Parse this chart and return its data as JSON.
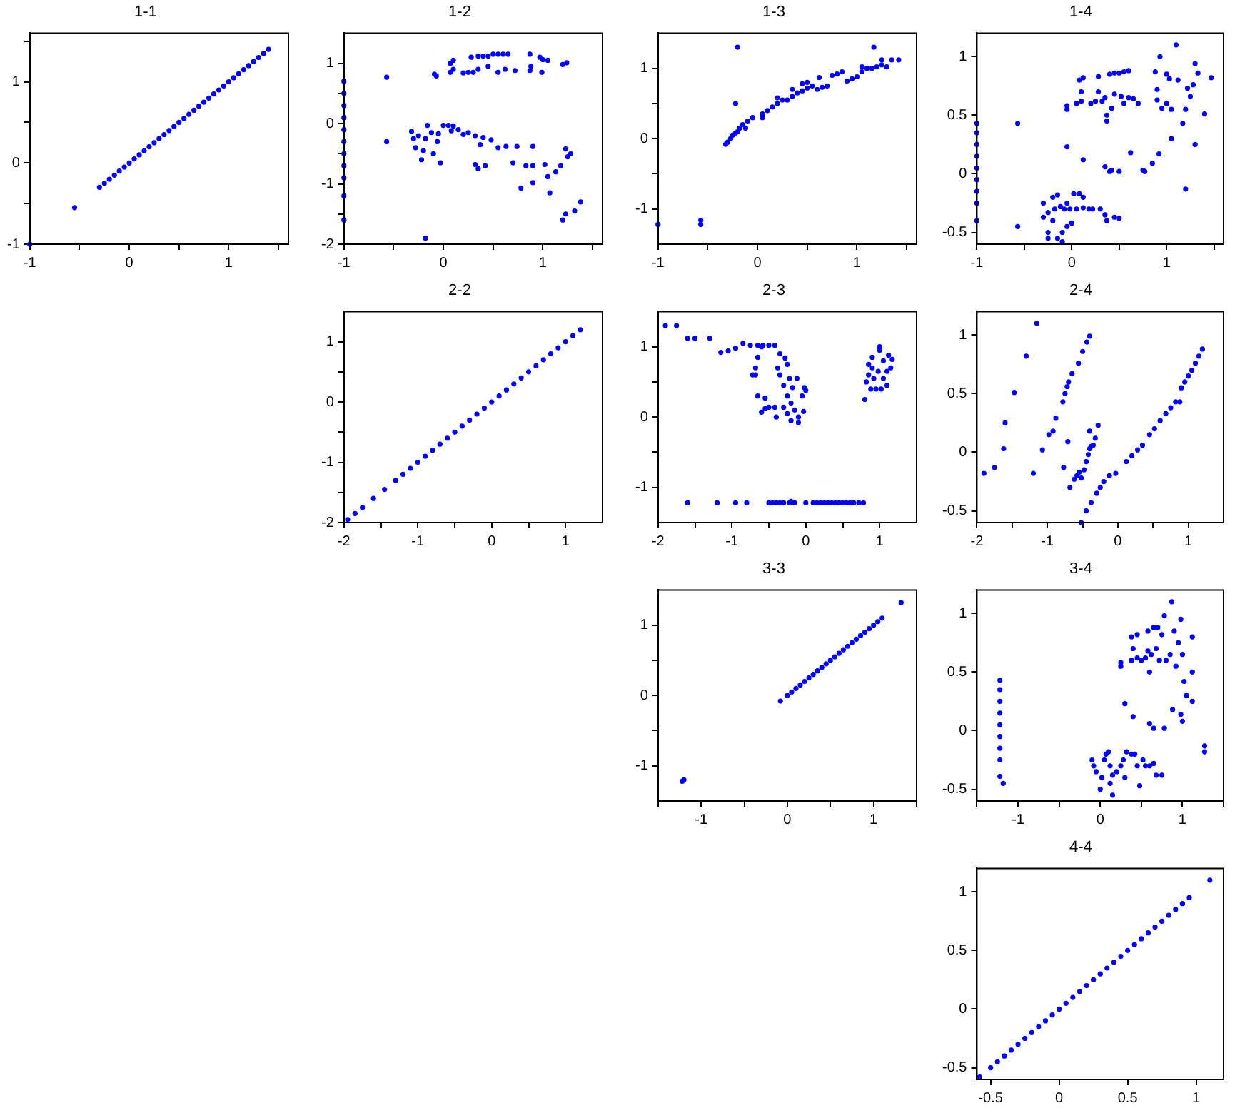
{
  "chart_data": [
    {
      "type": "scatter",
      "title": "1-1",
      "color": "#0000ff",
      "marker": "circle",
      "grid": false,
      "legend": false,
      "xlim": [
        -1,
        1.6
      ],
      "xticks": [
        -1,
        {
          "value": -0.5,
          "label": null
        },
        0,
        {
          "value": 0.5,
          "label": null
        },
        1,
        {
          "value": 1.5,
          "label": null
        }
      ],
      "ylim": [
        -1,
        1.6
      ],
      "yticks": [
        -1,
        {
          "value": -0.5,
          "label": null
        },
        0,
        {
          "value": 0.5,
          "label": null
        },
        1,
        {
          "value": 1.5,
          "label": null
        }
      ],
      "x": [
        -1,
        -0.55,
        -0.3,
        -0.25,
        -0.2,
        -0.15,
        -0.1,
        -0.05,
        0,
        0.05,
        0.1,
        0.15,
        0.2,
        0.25,
        0.3,
        0.35,
        0.4,
        0.45,
        0.5,
        0.55,
        0.6,
        0.65,
        0.7,
        0.75,
        0.8,
        0.85,
        0.9,
        0.95,
        1,
        1.05,
        1.1,
        1.15,
        1.2,
        1.25,
        1.3,
        1.35,
        1.4
      ],
      "values": [
        -1,
        -0.55,
        -0.3,
        -0.25,
        -0.2,
        -0.15,
        -0.1,
        -0.05,
        0,
        0.05,
        0.1,
        0.15,
        0.2,
        0.25,
        0.3,
        0.35,
        0.4,
        0.45,
        0.5,
        0.55,
        0.6,
        0.65,
        0.7,
        0.75,
        0.8,
        0.85,
        0.9,
        0.95,
        1,
        1.05,
        1.1,
        1.15,
        1.2,
        1.25,
        1.3,
        1.35,
        1.4
      ]
    },
    {
      "type": "scatter",
      "title": "1-2",
      "color": "#0000ff",
      "marker": "circle",
      "grid": false,
      "legend": false,
      "xlim": [
        -1,
        1.6
      ],
      "xticks": [
        -1,
        {
          "value": -0.5,
          "label": null
        },
        0,
        {
          "value": 0.5,
          "label": null
        },
        1,
        {
          "value": 1.5,
          "label": null
        }
      ],
      "ylim": [
        -2,
        1.5
      ],
      "yticks": [
        -2,
        {
          "value": -1.5,
          "label": null
        },
        -1,
        {
          "value": -0.5,
          "label": null
        },
        0,
        {
          "value": 0.5,
          "label": null
        },
        1
      ],
      "x": [
        -1,
        -1,
        -1,
        -1,
        -1,
        -1,
        -1,
        -1,
        -1,
        -1,
        -1,
        -0.57,
        -0.57,
        -0.09,
        -0.07,
        0.07,
        0.07,
        0.1,
        0.1,
        0.2,
        0.25,
        0.3,
        0.28,
        0.35,
        0.4,
        0.45,
        0.5,
        0.55,
        0.6,
        0.65,
        0.55,
        0.62,
        0.72,
        0.87,
        0.87,
        0.88,
        0.97,
        1,
        0.99,
        1.05,
        1.2,
        1.24,
        0.45,
        0.35,
        -0.32,
        -0.3,
        -0.25,
        -0.28,
        -0.22,
        -0.2,
        -0.18,
        -0.16,
        -0.12,
        -0.1,
        -0.06,
        -0.05,
        -0.03,
        0,
        0.05,
        0.08,
        0.1,
        0.15,
        0.2,
        0.25,
        0.32,
        0.32,
        0.35,
        0.37,
        0.4,
        0.42,
        0.48,
        0.55,
        0.63,
        0.7,
        0.74,
        0.78,
        0.83,
        0.9,
        0.9,
        0.9,
        1.02,
        1.07,
        1.05,
        1.13,
        1.18,
        1.23,
        1.25,
        1.28,
        1.2,
        1.23,
        1.32,
        1.38,
        -0.18
      ],
      "values": [
        0.7,
        0.5,
        0.3,
        0.1,
        -0.1,
        -0.3,
        -0.5,
        -0.7,
        -0.9,
        -1.2,
        -1.6,
        0.77,
        -0.3,
        0.82,
        0.79,
        1,
        0.85,
        1.05,
        0.9,
        0.84,
        0.85,
        0.85,
        1.1,
        0.9,
        1.12,
        1.12,
        1.15,
        1.15,
        1.15,
        1.15,
        0.85,
        0.9,
        0.88,
        1.15,
        0.88,
        0.95,
        1.1,
        1.06,
        0.85,
        1.05,
        0.98,
        1.01,
        0.95,
        1.12,
        -0.13,
        -0.25,
        -0.2,
        -0.4,
        -0.6,
        -0.45,
        -0.25,
        -0.03,
        -0.15,
        -0.5,
        -0.3,
        -0.17,
        -0.65,
        -0.03,
        -0.03,
        -0.12,
        -0.04,
        -0.1,
        -0.18,
        -0.15,
        -0.2,
        -0.68,
        -0.75,
        -0.35,
        -0.23,
        -0.7,
        -0.27,
        -0.4,
        -0.38,
        -0.65,
        -0.38,
        -1.07,
        -0.7,
        -0.38,
        -0.7,
        -0.98,
        -0.68,
        -1.15,
        -0.88,
        -0.8,
        -0.7,
        -0.42,
        -0.55,
        -0.5,
        -1.6,
        -1.5,
        -1.45,
        -1.3,
        -1.9
      ]
    },
    {
      "type": "scatter",
      "title": "1-3",
      "color": "#0000ff",
      "marker": "circle",
      "grid": false,
      "legend": false,
      "xlim": [
        -1,
        1.6
      ],
      "xticks": [
        -1,
        {
          "value": -0.5,
          "label": null
        },
        0,
        {
          "value": 0.5,
          "label": null
        },
        1,
        {
          "value": 1.5,
          "label": null
        }
      ],
      "ylim": [
        -1.5,
        1.5
      ],
      "yticks": [
        -1,
        {
          "value": -0.5,
          "label": null
        },
        0,
        {
          "value": 0.5,
          "label": null
        },
        1
      ],
      "x": [
        -1,
        -0.57,
        -0.57,
        -0.2,
        -0.22,
        1.17,
        -0.32,
        -0.3,
        -0.27,
        -0.25,
        -0.22,
        -0.2,
        -0.18,
        -0.15,
        -0.1,
        -0.05,
        -0.12,
        0.05,
        0.05,
        0.1,
        0.15,
        0.2,
        0.2,
        0.25,
        0.3,
        0.35,
        0.35,
        0.4,
        0.45,
        0.5,
        0.5,
        0.55,
        0.6,
        0.65,
        0.7,
        0.75,
        0.8,
        0.85,
        0.9,
        0.95,
        1,
        1.05,
        1.05,
        1.1,
        1.15,
        1.2,
        1.25,
        1.25,
        1.3,
        1.35,
        1.42,
        0.45,
        0.62
      ],
      "values": [
        -1.22,
        -1.16,
        -1.22,
        1.3,
        0.5,
        1.3,
        -0.08,
        -0.05,
        0,
        0.05,
        0.08,
        0.1,
        0.15,
        0.2,
        0.25,
        0.3,
        0.15,
        0.3,
        0.35,
        0.4,
        0.45,
        0.5,
        0.58,
        0.55,
        0.55,
        0.6,
        0.7,
        0.65,
        0.68,
        0.72,
        0.8,
        0.75,
        0.7,
        0.73,
        0.75,
        0.9,
        0.92,
        0.95,
        0.82,
        0.85,
        0.88,
        0.95,
        1.02,
        1,
        1,
        1.02,
        1.05,
        1.12,
        1.02,
        1.12,
        1.12,
        0.78,
        0.87
      ]
    },
    {
      "type": "scatter",
      "title": "1-4",
      "color": "#0000ff",
      "marker": "circle",
      "grid": false,
      "legend": false,
      "xlim": [
        -1,
        1.6
      ],
      "xticks": [
        -1,
        {
          "value": -0.5,
          "label": null
        },
        0,
        {
          "value": 0.5,
          "label": null
        },
        1,
        {
          "value": 1.5,
          "label": null
        }
      ],
      "ylim": [
        -0.6,
        1.2
      ],
      "yticks": [
        -0.5,
        0,
        0.5,
        1
      ],
      "x": [
        -1,
        -1,
        -1,
        -1,
        -1,
        -1,
        -1,
        -1,
        -1,
        -0.57,
        -0.57,
        -0.05,
        0.12,
        -0.05,
        -0.05,
        0.05,
        0.08,
        0.1,
        0.1,
        0.12,
        0.2,
        0.25,
        0.28,
        0.28,
        0.32,
        0.35,
        0.37,
        0.37,
        0.4,
        0.42,
        0.45,
        0.45,
        0.5,
        0.55,
        0.6,
        0.52,
        0.55,
        0.6,
        0.65,
        0.7,
        0.88,
        0.9,
        0.9,
        0.93,
        0.95,
        1,
        1,
        1.03,
        1.05,
        1.1,
        1.12,
        1.17,
        1.2,
        1.22,
        1.25,
        1.28,
        1.3,
        1.33,
        1.4,
        1.47,
        1.3,
        1.2,
        1.05,
        0.35,
        0.4,
        0.42,
        0.5,
        0.62,
        0.75,
        0.77,
        0.85,
        0.92,
        -0.3,
        -0.3,
        -0.25,
        -0.25,
        -0.25,
        -0.2,
        -0.2,
        -0.18,
        -0.15,
        -0.15,
        -0.12,
        -0.1,
        -0.08,
        -0.05,
        -0.05,
        -0.02,
        0,
        0.02,
        0.08,
        0.12,
        0.12,
        0.18,
        0.22,
        0.3,
        0.35,
        0.37,
        0.45,
        0.5,
        -0.1,
        0.05
      ],
      "values": [
        0.43,
        0.35,
        0.25,
        0.15,
        0.05,
        -0.05,
        -0.15,
        -0.25,
        -0.4,
        0.43,
        -0.45,
        0.23,
        0.12,
        0.58,
        0.55,
        0.6,
        0.8,
        0.7,
        0.62,
        0.82,
        0.6,
        0.62,
        0.83,
        0.7,
        0.62,
        0.65,
        0.5,
        0.45,
        0.85,
        0.56,
        0.86,
        0.68,
        0.86,
        0.87,
        0.88,
        0.66,
        0.6,
        0.65,
        0.64,
        0.6,
        0.87,
        0.72,
        0.63,
        1,
        0.56,
        0.85,
        0.6,
        0.81,
        0.55,
        1.1,
        0.8,
        0.43,
        0.55,
        0.73,
        0.66,
        0.76,
        0.94,
        0.86,
        0.51,
        0.82,
        0.25,
        -0.13,
        0.3,
        0.06,
        0.02,
        0.03,
        0.02,
        0.18,
        0.03,
        0.02,
        0.09,
        0.17,
        -0.25,
        -0.37,
        -0.33,
        -0.5,
        -0.55,
        -0.2,
        -0.4,
        -0.3,
        -0.18,
        -0.55,
        -0.28,
        -0.5,
        -0.3,
        -0.25,
        -0.45,
        -0.3,
        -0.42,
        -0.17,
        -0.17,
        -0.2,
        -0.29,
        -0.3,
        -0.3,
        -0.3,
        -0.35,
        -0.4,
        -0.37,
        -0.38,
        -0.58,
        -0.3
      ]
    },
    {
      "type": "scatter",
      "title": "2-2",
      "color": "#0000ff",
      "marker": "circle",
      "grid": false,
      "legend": false,
      "xlim": [
        -2,
        1.5
      ],
      "xticks": [
        -2,
        {
          "value": -1.5,
          "label": null
        },
        -1,
        {
          "value": -0.5,
          "label": null
        },
        0,
        {
          "value": 0.5,
          "label": null
        },
        1
      ],
      "ylim": [
        -2,
        1.5
      ],
      "yticks": [
        -2,
        {
          "value": -1.5,
          "label": null
        },
        -1,
        {
          "value": -0.5,
          "label": null
        },
        0,
        {
          "value": 0.5,
          "label": null
        },
        1
      ],
      "x": [
        -1.95,
        -1.85,
        -1.75,
        -1.6,
        -1.45,
        -1.3,
        -1.2,
        -1.1,
        -1,
        -0.9,
        -0.8,
        -0.7,
        -0.6,
        -0.5,
        -0.4,
        -0.3,
        -0.2,
        -0.1,
        0,
        0.1,
        0.2,
        0.3,
        0.4,
        0.5,
        0.6,
        0.7,
        0.8,
        0.9,
        1,
        1.1,
        1.2
      ],
      "values": [
        -1.95,
        -1.85,
        -1.75,
        -1.6,
        -1.45,
        -1.3,
        -1.2,
        -1.1,
        -1,
        -0.9,
        -0.8,
        -0.7,
        -0.6,
        -0.5,
        -0.4,
        -0.3,
        -0.2,
        -0.1,
        0,
        0.1,
        0.2,
        0.3,
        0.4,
        0.5,
        0.6,
        0.7,
        0.8,
        0.9,
        1,
        1.1,
        1.2
      ]
    },
    {
      "type": "scatter",
      "title": "2-3",
      "color": "#0000ff",
      "marker": "circle",
      "grid": false,
      "legend": false,
      "xlim": [
        -2,
        1.5
      ],
      "xticks": [
        -2,
        {
          "value": -1.5,
          "label": null
        },
        -1,
        {
          "value": -0.5,
          "label": null
        },
        0,
        {
          "value": 0.5,
          "label": null
        },
        1
      ],
      "ylim": [
        -1.5,
        1.5
      ],
      "yticks": [
        -1,
        {
          "value": -0.5,
          "label": null
        },
        0,
        {
          "value": 0.5,
          "label": null
        },
        1
      ],
      "x": [
        -1.9,
        -1.75,
        -1.6,
        -1.5,
        -1.3,
        -1.15,
        -1.05,
        -0.95,
        -0.85,
        -0.75,
        -0.65,
        -0.58,
        -0.5,
        -0.42,
        -0.68,
        -0.72,
        -0.68,
        -0.65,
        -0.6,
        -0.65,
        -0.55,
        -0.6,
        -0.55,
        -0.5,
        -0.42,
        -0.4,
        -0.38,
        -0.35,
        -0.35,
        -0.3,
        -0.3,
        -0.28,
        -0.25,
        -0.25,
        -0.25,
        -0.22,
        -0.2,
        -0.2,
        -0.18,
        -0.15,
        -0.12,
        -0.1,
        -0.1,
        -0.05,
        -0.02,
        0,
        -0.03,
        0.8,
        0.82,
        0.85,
        0.85,
        0.88,
        0.9,
        0.9,
        0.92,
        0.95,
        0.98,
        1,
        1,
        1.02,
        1.05,
        1.05,
        1.1,
        1.1,
        1.12,
        1.15,
        1.17,
        -1.6,
        -1.2,
        -0.95,
        -0.8,
        -0.5,
        -0.45,
        -0.4,
        -0.35,
        -0.3,
        -0.22,
        -0.2,
        -0.15,
        0,
        0.1,
        0.15,
        0.2,
        0.25,
        0.3,
        0.35,
        0.4,
        0.45,
        0.5,
        0.55,
        0.6,
        0.65,
        0.72,
        0.78
      ],
      "values": [
        1.3,
        1.3,
        1.12,
        1.12,
        1.12,
        0.92,
        0.94,
        0.98,
        1.05,
        1.02,
        1.02,
        1.02,
        1.02,
        1.02,
        0.6,
        0.6,
        0.7,
        0.85,
        1,
        0.3,
        0.27,
        0.07,
        0.12,
        0.14,
        0.14,
        0,
        0.7,
        0.9,
        0.6,
        0.45,
        0.14,
        0.84,
        0.75,
        0.3,
        0.05,
        0.55,
        0.2,
        -0.05,
        0.42,
        0.1,
        0.55,
        0,
        -0.08,
        0.3,
        0.42,
        0.38,
        0.08,
        0.25,
        0.5,
        0.75,
        0.6,
        0.4,
        0.7,
        0.85,
        0.55,
        0.4,
        0.65,
        0.95,
        1,
        0.4,
        0.55,
        0.8,
        0.45,
        0.65,
        0.88,
        0.7,
        0.82,
        -1.22,
        -1.22,
        -1.22,
        -1.22,
        -1.22,
        -1.22,
        -1.22,
        -1.22,
        -1.22,
        -1.22,
        -1.2,
        -1.22,
        -1.22,
        -1.22,
        -1.22,
        -1.22,
        -1.22,
        -1.22,
        -1.22,
        -1.22,
        -1.22,
        -1.22,
        -1.22,
        -1.22,
        -1.22,
        -1.22,
        -1.22
      ]
    },
    {
      "type": "scatter",
      "title": "2-4",
      "color": "#0000ff",
      "marker": "circle",
      "grid": false,
      "legend": false,
      "xlim": [
        -2,
        1.5
      ],
      "xticks": [
        -2,
        {
          "value": -1.5,
          "label": null
        },
        -1,
        {
          "value": -0.5,
          "label": null
        },
        0,
        {
          "value": 0.5,
          "label": null
        },
        1
      ],
      "ylim": [
        -0.6,
        1.2
      ],
      "yticks": [
        -0.5,
        0,
        0.5,
        1
      ],
      "x": [
        -1.9,
        -1.75,
        -1.62,
        -1.6,
        -1.47,
        -1.3,
        -1.15,
        -1.2,
        -1.07,
        -0.98,
        -0.92,
        -0.88,
        -0.78,
        -0.75,
        -0.72,
        -0.7,
        -0.65,
        -0.56,
        -0.5,
        -0.44,
        -0.4,
        -0.77,
        -0.71,
        -0.68,
        -0.62,
        -0.58,
        -0.55,
        -0.52,
        -0.48,
        -0.45,
        -0.42,
        -0.4,
        -0.38,
        -0.35,
        -0.32,
        -0.28,
        -0.4,
        -0.52,
        -0.45,
        -0.38,
        -0.3,
        -0.25,
        -0.2,
        -0.12,
        -0.03,
        0.12,
        0.2,
        0.28,
        0.35,
        0.45,
        0.52,
        0.6,
        0.68,
        0.75,
        0.82,
        0.88,
        0.9,
        0.95,
        1,
        1.05,
        1.1,
        1.15,
        1.2
      ],
      "values": [
        -0.18,
        -0.13,
        0.03,
        0.25,
        0.51,
        0.82,
        1.1,
        -0.18,
        0.02,
        0.15,
        0.18,
        0.29,
        0.43,
        0.5,
        0.56,
        0.6,
        0.67,
        0.76,
        0.86,
        0.94,
        0.99,
        -0.13,
        0.09,
        -0.3,
        -0.23,
        -0.2,
        -0.17,
        -0.22,
        -0.15,
        -0.08,
        -0.02,
        0.03,
        0.05,
        0.06,
        0.12,
        0.23,
        0.18,
        -0.6,
        -0.5,
        -0.43,
        -0.35,
        -0.3,
        -0.25,
        -0.2,
        -0.18,
        -0.08,
        -0.03,
        0.02,
        0.06,
        0.15,
        0.2,
        0.27,
        0.33,
        0.38,
        0.43,
        0.43,
        0.55,
        0.6,
        0.65,
        0.7,
        0.76,
        0.82,
        0.88
      ]
    },
    {
      "type": "scatter",
      "title": "3-3",
      "color": "#0000ff",
      "marker": "circle",
      "grid": false,
      "legend": false,
      "xlim": [
        -1.5,
        1.5
      ],
      "xticks": [
        {
          "value": -1.5,
          "label": null
        },
        -1,
        {
          "value": -0.5,
          "label": null
        },
        0,
        {
          "value": 0.5,
          "label": null
        },
        1,
        {
          "value": 1.5,
          "label": null
        }
      ],
      "ylim": [
        -1.5,
        1.5
      ],
      "yticks": [
        -1,
        {
          "value": -0.5,
          "label": null
        },
        0,
        {
          "value": 0.5,
          "label": null
        },
        1
      ],
      "x": [
        -1.22,
        -1.2,
        -0.08,
        0,
        0.05,
        0.1,
        0.15,
        0.2,
        0.25,
        0.3,
        0.35,
        0.4,
        0.45,
        0.5,
        0.55,
        0.6,
        0.65,
        0.7,
        0.75,
        0.8,
        0.85,
        0.9,
        0.95,
        1,
        1.05,
        1.1,
        1.32
      ],
      "values": [
        -1.22,
        -1.2,
        -0.08,
        0,
        0.05,
        0.1,
        0.15,
        0.2,
        0.25,
        0.3,
        0.35,
        0.4,
        0.45,
        0.5,
        0.55,
        0.6,
        0.65,
        0.7,
        0.75,
        0.8,
        0.85,
        0.9,
        0.95,
        1,
        1.05,
        1.1,
        1.32
      ]
    },
    {
      "type": "scatter",
      "title": "3-4",
      "color": "#0000ff",
      "marker": "circle",
      "grid": false,
      "legend": false,
      "xlim": [
        -1.5,
        1.5
      ],
      "xticks": [
        {
          "value": -1.5,
          "label": null
        },
        -1,
        {
          "value": -0.5,
          "label": null
        },
        0,
        {
          "value": 0.5,
          "label": null
        },
        1,
        {
          "value": 1.5,
          "label": null
        }
      ],
      "ylim": [
        -0.6,
        1.2
      ],
      "yticks": [
        -0.5,
        0,
        0.5,
        1
      ],
      "x": [
        -1.22,
        -1.22,
        -1.22,
        -1.22,
        -1.22,
        -1.22,
        -1.22,
        -1.22,
        -1.22,
        -1.18,
        -0.1,
        -0.08,
        -0.05,
        0,
        0.02,
        0.05,
        0.07,
        0.1,
        0.12,
        0.12,
        0.15,
        0.15,
        0.2,
        0.25,
        0.28,
        0.3,
        0.32,
        0.38,
        0.42,
        0.45,
        0.48,
        0.52,
        0.55,
        0.6,
        0.65,
        0.68,
        0.75,
        1.27,
        1.27,
        0.25,
        0.25,
        0.38,
        0.38,
        0.4,
        0.45,
        0.45,
        0.5,
        0.55,
        0.58,
        0.58,
        0.6,
        0.62,
        0.65,
        0.68,
        0.7,
        0.72,
        0.75,
        0.8,
        0.85,
        0.87,
        0.9,
        0.92,
        0.95,
        0.98,
        1,
        1.02,
        1.05,
        1.12,
        1.12,
        1.12,
        0.78,
        0.3,
        0.4,
        0.6,
        0.65,
        0.78,
        0.88,
        0.98,
        1
      ],
      "values": [
        0.43,
        0.35,
        0.25,
        0.15,
        0.05,
        -0.05,
        -0.15,
        -0.25,
        -0.39,
        -0.45,
        -0.25,
        -0.3,
        -0.35,
        -0.5,
        -0.4,
        -0.25,
        -0.2,
        -0.18,
        -0.3,
        -0.45,
        -0.55,
        -0.38,
        -0.35,
        -0.3,
        -0.25,
        -0.4,
        -0.18,
        -0.2,
        -0.2,
        -0.3,
        -0.47,
        -0.25,
        -0.3,
        -0.3,
        -0.28,
        -0.38,
        -0.38,
        -0.13,
        -0.18,
        0.58,
        0.55,
        0.6,
        0.8,
        0.7,
        0.62,
        0.82,
        0.6,
        0.62,
        0.85,
        0.68,
        0.5,
        0.65,
        0.88,
        0.7,
        0.88,
        0.6,
        0.82,
        0.6,
        0.65,
        1.1,
        0.85,
        0.55,
        0.75,
        0.95,
        0.65,
        0.42,
        0.3,
        0.8,
        0.5,
        0.25,
        0.98,
        0.23,
        0.12,
        0.06,
        0.02,
        0.02,
        0.18,
        0.14,
        0.08
      ]
    },
    {
      "type": "scatter",
      "title": "4-4",
      "color": "#0000ff",
      "marker": "circle",
      "grid": false,
      "legend": false,
      "xlim": [
        -0.6,
        1.2
      ],
      "xticks": [
        -0.5,
        0,
        0.5,
        1
      ],
      "ylim": [
        -0.6,
        1.2
      ],
      "yticks": [
        -0.5,
        0,
        0.5,
        1
      ],
      "x": [
        -0.58,
        -0.5,
        -0.45,
        -0.4,
        -0.35,
        -0.3,
        -0.25,
        -0.2,
        -0.15,
        -0.1,
        -0.05,
        0,
        0.05,
        0.1,
        0.15,
        0.2,
        0.25,
        0.3,
        0.35,
        0.4,
        0.45,
        0.5,
        0.55,
        0.6,
        0.65,
        0.7,
        0.75,
        0.8,
        0.85,
        0.9,
        0.95,
        1.1
      ],
      "values": [
        -0.58,
        -0.5,
        -0.45,
        -0.4,
        -0.35,
        -0.3,
        -0.25,
        -0.2,
        -0.15,
        -0.1,
        -0.05,
        0,
        0.05,
        0.1,
        0.15,
        0.2,
        0.25,
        0.3,
        0.35,
        0.4,
        0.45,
        0.5,
        0.55,
        0.6,
        0.65,
        0.7,
        0.75,
        0.8,
        0.85,
        0.9,
        0.95,
        1.1
      ]
    }
  ]
}
